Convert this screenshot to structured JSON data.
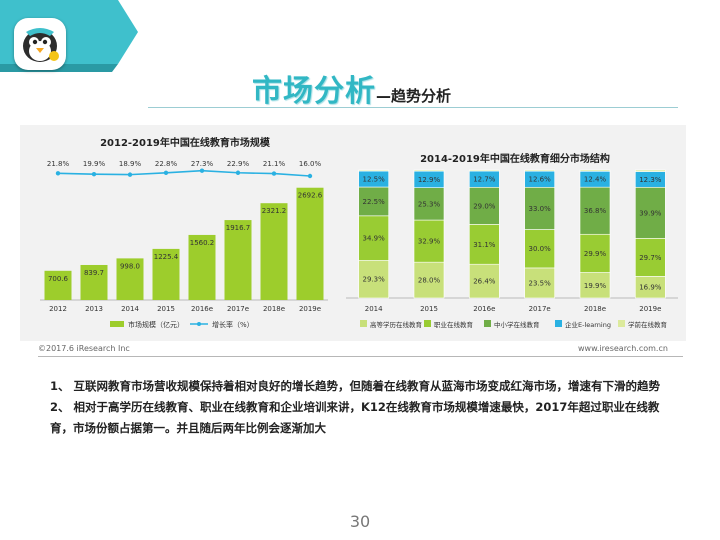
{
  "title": {
    "main": "市场分析",
    "sub": "—趋势分析"
  },
  "chart_data": [
    {
      "type": "bar",
      "title": "2012-2019年中国在线教育市场规模",
      "categories": [
        "2012",
        "2013",
        "2014",
        "2015",
        "2016e",
        "2017e",
        "2018e",
        "2019e"
      ],
      "series": [
        {
          "name": "市场规模（亿元）",
          "type": "bar",
          "color": "#9dcd2c",
          "values": [
            700.6,
            839.7,
            998.0,
            1225.4,
            1560.2,
            1916.7,
            2321.2,
            2692.6
          ]
        },
        {
          "name": "增长率（%）",
          "type": "line",
          "color": "#2ab1e2",
          "values": [
            21.8,
            19.9,
            18.9,
            22.8,
            27.3,
            22.9,
            21.1,
            16.0
          ]
        }
      ],
      "value_labels": [
        "700.6",
        "839.7",
        "998.0",
        "1225.4",
        "1560.2",
        "1916.7",
        "2321.2",
        "2692.6"
      ],
      "rate_labels": [
        "21.8%",
        "19.9%",
        "18.9%",
        "22.8%",
        "27.3%",
        "22.9%",
        "21.1%",
        "16.0%"
      ],
      "legend_position": "bottom"
    },
    {
      "type": "bar",
      "stacked": true,
      "percent": true,
      "title": "2014-2019年中国在线教育细分市场结构",
      "categories": [
        "2014",
        "2015",
        "2016e",
        "2017e",
        "2018e",
        "2019e"
      ],
      "series": [
        {
          "name": "高等学历在线教育",
          "color": "#c8e07a",
          "values": [
            29.3,
            28.0,
            26.4,
            23.5,
            19.9,
            16.9
          ],
          "labels": [
            "29.3%",
            "28.0%",
            "26.4%",
            "23.5%",
            "19.9%",
            "16.9%"
          ]
        },
        {
          "name": "职业在线教育",
          "color": "#99cc33",
          "values": [
            34.9,
            32.9,
            31.1,
            30.0,
            29.9,
            29.7
          ],
          "labels": [
            "34.9%",
            "32.9%",
            "31.1%",
            "30.0%",
            "29.9%",
            "29.7%"
          ]
        },
        {
          "name": "中小学在线教育",
          "color": "#70ad47",
          "values": [
            22.5,
            25.3,
            29.0,
            33.0,
            36.8,
            39.9
          ],
          "labels": [
            "22.5%",
            "25.3%",
            "29.0%",
            "33.0%",
            "36.8%",
            "39.9%"
          ]
        },
        {
          "name": "企业E-learning",
          "color": "#2ab1e2",
          "values": [
            12.5,
            12.9,
            12.7,
            12.6,
            12.4,
            12.3
          ],
          "labels": [
            "12.5%",
            "12.9%",
            "12.7%",
            "12.6%",
            "12.4%",
            "12.3%"
          ]
        },
        {
          "name": "学前在线教育",
          "color": "#dcea9c",
          "values": [
            0.8,
            0.9,
            0.8,
            0.9,
            1.0,
            1.2
          ]
        }
      ],
      "legend_position": "bottom"
    }
  ],
  "footer": {
    "left": "©2017.6 iResearch Inc",
    "right": "www.iresearch.com.cn"
  },
  "notes": [
    "1、 互联网教育市场营收规模保持着相对良好的增长趋势，但随着在线教育从蓝海市场变成红海市场，增速有下滑的趋势",
    "2、 相对于高学历在线教育、职业在线教育和企业培训来讲，K12在线教育市场规模增速最快，2017年超过职业在线教育，市场份额占据第一。并且随后两年比例会逐渐加大"
  ],
  "page_number": "30",
  "colors": {
    "accent": "#31b7c4",
    "ribbon": "#3fc0cc"
  }
}
